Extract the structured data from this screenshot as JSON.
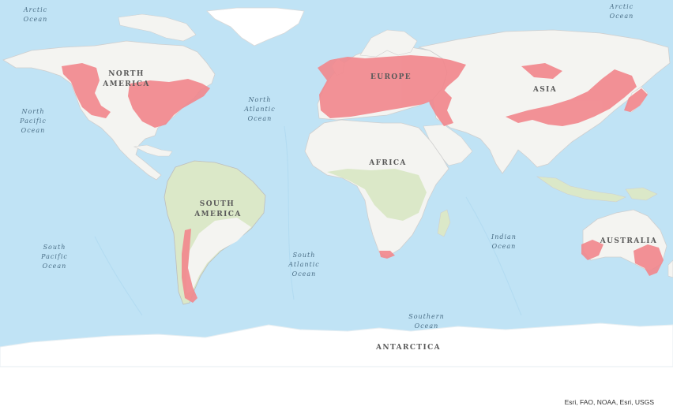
{
  "map": {
    "continent_labels": {
      "north_america": [
        "NORTH",
        "AMERICA"
      ],
      "south_america": [
        "SOUTH",
        "AMERICA"
      ],
      "europe": "EUROPE",
      "asia": "ASIA",
      "africa": "AFRICA",
      "australia": "AUSTRALIA",
      "antarctica": "ANTARCTICA"
    },
    "ocean_labels": {
      "arctic_left": [
        "Arctic",
        "Ocean"
      ],
      "arctic_right": [
        "Arctic",
        "Ocean"
      ],
      "north_pacific": [
        "North",
        "Pacific",
        "Ocean"
      ],
      "north_atlantic": [
        "North",
        "Atlantic",
        "Ocean"
      ],
      "south_pacific": [
        "South",
        "Pacific",
        "Ocean"
      ],
      "south_atlantic": [
        "South",
        "Atlantic",
        "Ocean"
      ],
      "indian": [
        "Indian",
        "Ocean"
      ],
      "southern": [
        "Southern",
        "Ocean"
      ]
    },
    "attribution": "Esri, FAO, NOAA, Esri, USGS",
    "colors": {
      "ocean": "#c3e4f5",
      "deep_ocean": "#b6ddf2",
      "land": "#f4f4f1",
      "vegetation": "#dbe8c8",
      "highlight": "#f2868c",
      "ice": "#ffffff"
    }
  }
}
